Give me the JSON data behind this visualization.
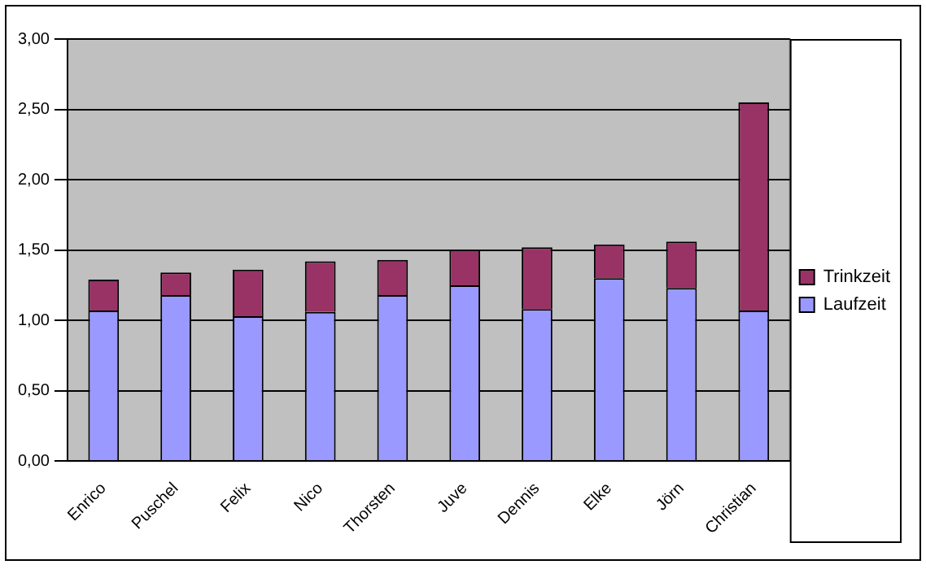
{
  "chart_data": {
    "type": "bar",
    "stacked": true,
    "categories": [
      "Enrico",
      "Puschel",
      "Felix",
      "Nico",
      "Thorsten",
      "Juve",
      "Dennis",
      "Elke",
      "Jörn",
      "Christian"
    ],
    "series": [
      {
        "name": "Laufzeit",
        "color": "#9999ff",
        "values": [
          1.07,
          1.18,
          1.03,
          1.06,
          1.18,
          1.25,
          1.08,
          1.3,
          1.23,
          1.07
        ]
      },
      {
        "name": "Trinkzeit",
        "color": "#993366",
        "values": [
          0.22,
          0.16,
          0.33,
          0.36,
          0.25,
          0.25,
          0.44,
          0.24,
          0.33,
          1.48
        ]
      }
    ],
    "ylim": [
      0,
      3
    ],
    "yticks": [
      {
        "value": 0,
        "label": "0,00"
      },
      {
        "value": 0.5,
        "label": "0,50"
      },
      {
        "value": 1,
        "label": "1,00"
      },
      {
        "value": 1.5,
        "label": "1,50"
      },
      {
        "value": 2,
        "label": "2,00"
      },
      {
        "value": 2.5,
        "label": "2,50"
      },
      {
        "value": 3,
        "label": "3,00"
      }
    ],
    "grid": "y",
    "legend": "right"
  }
}
